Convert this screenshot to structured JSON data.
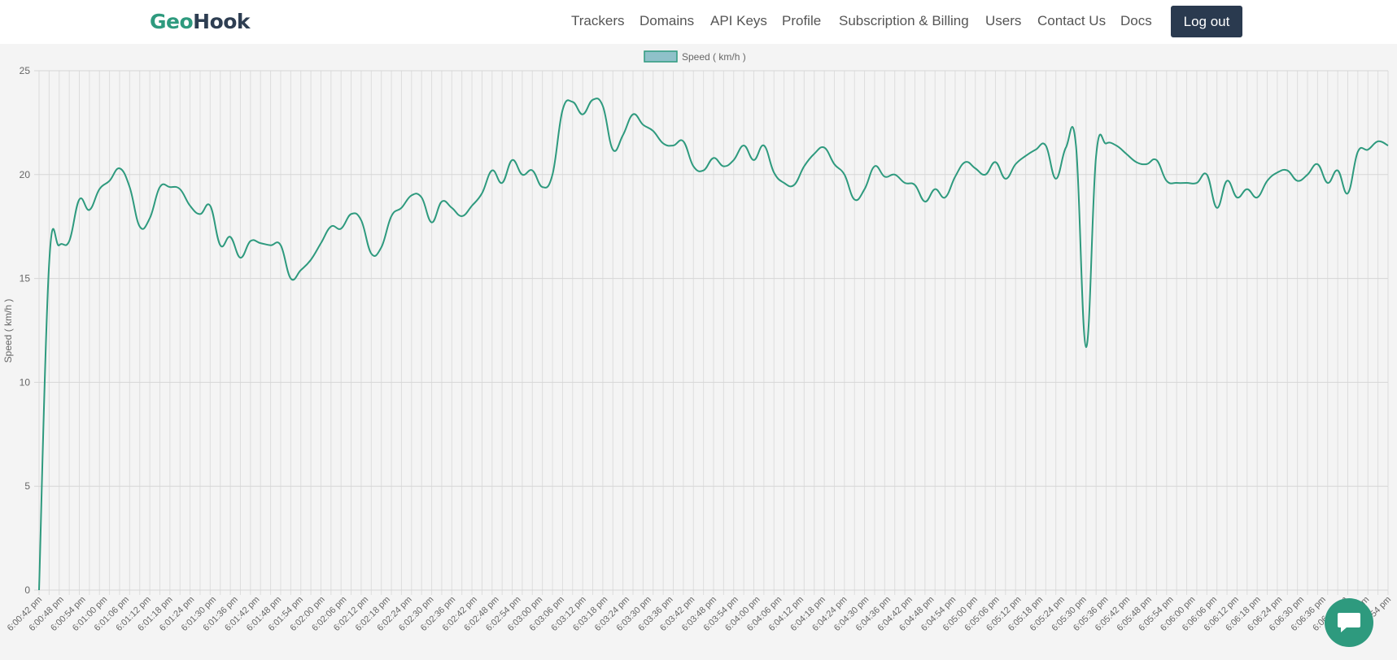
{
  "brand": {
    "part1": "Geo",
    "part2": "Hook"
  },
  "nav": {
    "items": [
      {
        "label": "Trackers"
      },
      {
        "label": "Domains"
      },
      {
        "label": "API Keys"
      },
      {
        "label": "Profile"
      },
      {
        "label": "Subscription & Billing"
      },
      {
        "label": "Users"
      },
      {
        "label": "Contact Us"
      },
      {
        "label": "Docs"
      }
    ],
    "logout_label": "Log out"
  },
  "chat": {
    "icon": "chat-bubble-icon"
  },
  "colors": {
    "accent": "#2e9a7e",
    "line": "#2e9a7e",
    "legend_fill": "#8fc1c9",
    "button": "#2a3a4f"
  },
  "chart_data": {
    "type": "line",
    "legend": "Speed ( km/h )",
    "legend_position": "top",
    "ylabel": "Speed ( km/h )",
    "ylim": [
      0,
      25
    ],
    "yticks": [
      0,
      5,
      10,
      15,
      20,
      25
    ],
    "grid": true,
    "x_tick_labels": [
      "6:00:42 pm",
      "6:00:48 pm",
      "6:00:54 pm",
      "6:01:00 pm",
      "6:01:06 pm",
      "6:01:12 pm",
      "6:01:18 pm",
      "6:01:24 pm",
      "6:01:30 pm",
      "6:01:36 pm",
      "6:01:42 pm",
      "6:01:48 pm",
      "6:01:54 pm",
      "6:02:00 pm",
      "6:02:06 pm",
      "6:02:12 pm",
      "6:02:18 pm",
      "6:02:24 pm",
      "6:02:30 pm",
      "6:02:36 pm",
      "6:02:42 pm",
      "6:02:48 pm",
      "6:02:54 pm",
      "6:03:00 pm",
      "6:03:06 pm",
      "6:03:12 pm",
      "6:03:18 pm",
      "6:03:24 pm",
      "6:03:30 pm",
      "6:03:36 pm",
      "6:03:42 pm",
      "6:03:48 pm",
      "6:03:54 pm",
      "6:04:00 pm",
      "6:04:06 pm",
      "6:04:12 pm",
      "6:04:18 pm",
      "6:04:24 pm",
      "6:04:30 pm",
      "6:04:36 pm",
      "6:04:42 pm",
      "6:04:48 pm",
      "6:04:54 pm",
      "6:05:00 pm",
      "6:05:06 pm",
      "6:05:12 pm",
      "6:05:18 pm",
      "6:05:24 pm",
      "6:05:30 pm",
      "6:05:36 pm",
      "6:05:42 pm",
      "6:05:48 pm",
      "6:05:54 pm",
      "6:06:00 pm",
      "6:06:06 pm",
      "6:06:12 pm",
      "6:06:18 pm",
      "6:06:24 pm",
      "6:06:30 pm",
      "6:06:36 pm",
      "6:06:42 pm",
      "6:06:48 pm",
      "6:06:54 pm"
    ],
    "values": [
      0,
      15.7,
      16.6,
      16.8,
      18.8,
      18.3,
      19.3,
      19.7,
      20.3,
      19.4,
      17.5,
      17.9,
      19.4,
      19.4,
      19.3,
      18.5,
      18.1,
      18.5,
      16.6,
      17.0,
      16.0,
      16.8,
      16.7,
      16.6,
      16.6,
      15.0,
      15.4,
      15.9,
      16.7,
      17.5,
      17.4,
      18.1,
      17.8,
      16.2,
      16.5,
      18.0,
      18.4,
      19.0,
      18.9,
      17.7,
      18.7,
      18.4,
      18.0,
      18.5,
      19.1,
      20.2,
      19.6,
      20.7,
      20.0,
      20.2,
      19.4,
      20.0,
      23.1,
      23.5,
      22.9,
      23.6,
      23.3,
      21.2,
      21.9,
      22.9,
      22.4,
      22.1,
      21.5,
      21.4,
      21.6,
      20.4,
      20.2,
      20.8,
      20.4,
      20.7,
      21.4,
      20.7,
      21.4,
      20.1,
      19.6,
      19.5,
      20.4,
      21.0,
      21.3,
      20.5,
      20.0,
      18.8,
      19.3,
      20.4,
      19.9,
      20.0,
      19.6,
      19.5,
      18.7,
      19.3,
      18.9,
      19.9,
      20.6,
      20.3,
      20.0,
      20.6,
      19.8,
      20.5,
      20.9,
      21.2,
      21.4,
      19.8,
      21.3,
      21.4,
      11.7,
      20.9,
      21.5,
      21.4,
      21.0,
      20.6,
      20.5,
      20.7,
      19.7,
      19.6,
      19.6,
      19.6,
      20.0,
      18.4,
      19.7,
      18.9,
      19.3,
      18.9,
      19.7,
      20.1,
      20.2,
      19.7,
      20.0,
      20.5,
      19.6,
      20.2,
      19.1,
      21.1,
      21.2,
      21.6,
      21.4
    ]
  }
}
